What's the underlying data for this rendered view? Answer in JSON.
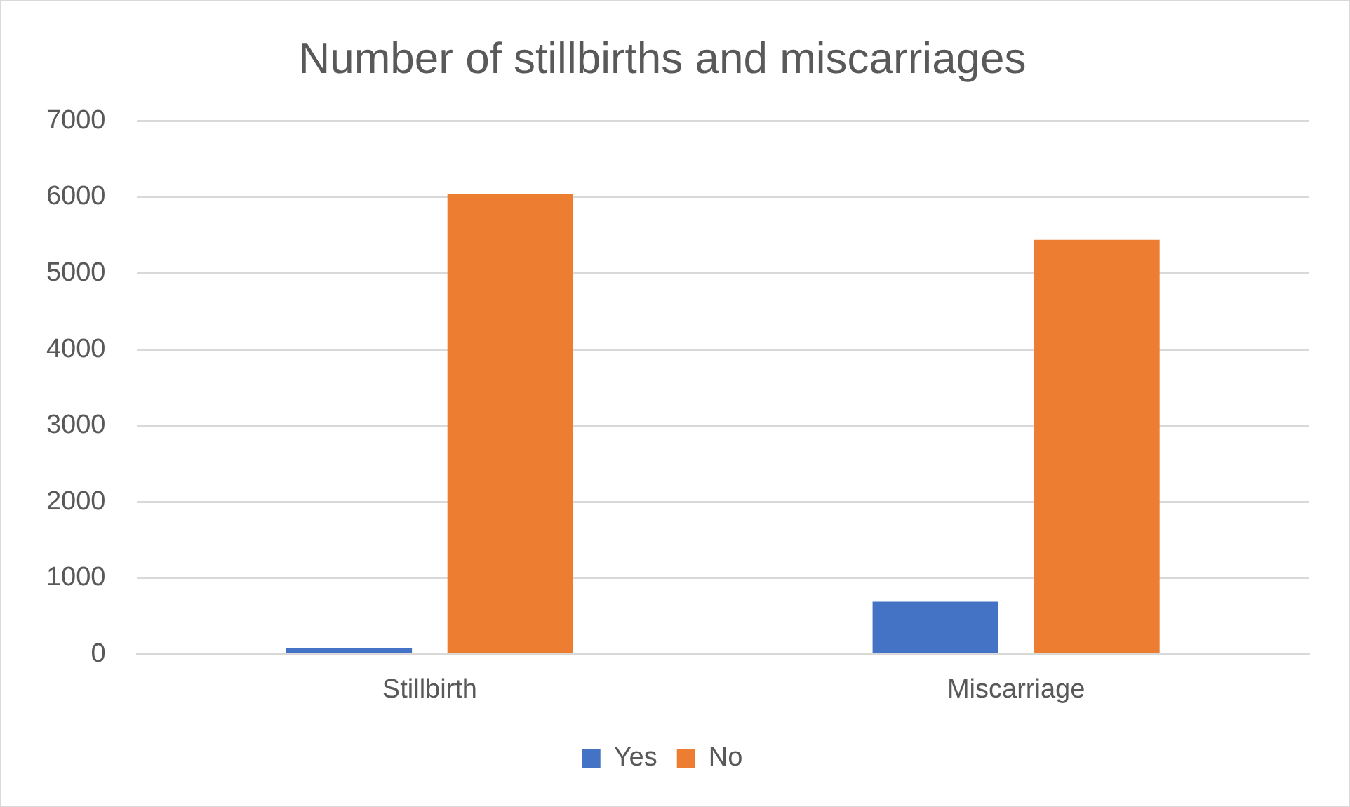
{
  "chart_data": {
    "type": "bar",
    "title": "Number of stillbirths and miscarriages",
    "categories": [
      "Stillbirth",
      "Miscarriage"
    ],
    "series": [
      {
        "name": "Yes",
        "color": "#4472c4",
        "values": [
          80,
          690
        ]
      },
      {
        "name": "No",
        "color": "#ed7d31",
        "values": [
          6040,
          5440
        ]
      }
    ],
    "ylim": [
      0,
      7000
    ],
    "yticks": [
      0,
      1000,
      2000,
      3000,
      4000,
      5000,
      6000,
      7000
    ],
    "grid": "y",
    "legend": "bottom"
  }
}
